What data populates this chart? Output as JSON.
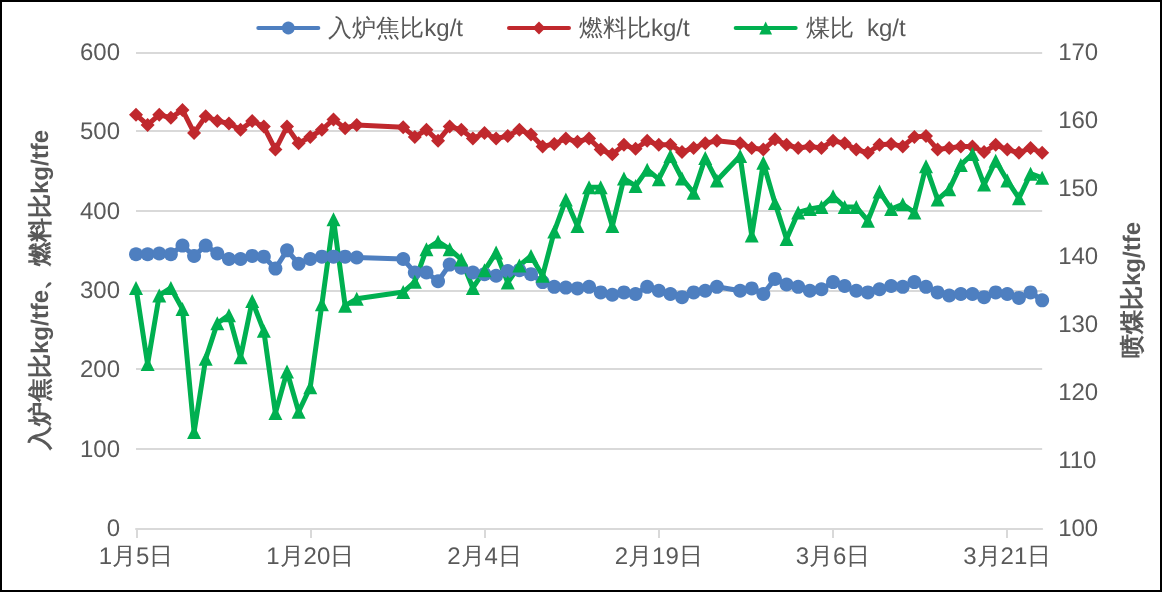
{
  "chart_data": {
    "type": "line",
    "xlabel": null,
    "ylabel": "入炉焦比kg/tfe、燃料比kg/tfe",
    "y2label": "喷煤比kg/tfe",
    "categories": [
      "1月5日",
      null,
      null,
      null,
      null,
      null,
      null,
      null,
      null,
      null,
      null,
      null,
      null,
      null,
      null,
      "1月20日",
      null,
      null,
      null,
      null,
      null,
      null,
      null,
      null,
      null,
      null,
      null,
      null,
      null,
      null,
      "2月4日",
      null,
      null,
      null,
      null,
      null,
      null,
      null,
      null,
      null,
      null,
      null,
      null,
      null,
      null,
      "2月19日",
      null,
      null,
      null,
      null,
      null,
      null,
      null,
      null,
      null,
      null,
      null,
      null,
      null,
      null,
      "3月6日",
      null,
      null,
      null,
      null,
      null,
      null,
      null,
      null,
      null,
      null,
      null,
      null,
      null,
      null,
      "3月21日",
      null,
      null,
      null
    ],
    "series": [
      {
        "name": "入炉焦比kg/t",
        "color": "#4e7fc0",
        "marker": "circle",
        "values": [
          345,
          345,
          346,
          345,
          356,
          343,
          356,
          346,
          339,
          339,
          343,
          342,
          327,
          350,
          333,
          339,
          342,
          342,
          342,
          341,
          null,
          null,
          null,
          339,
          322,
          322,
          311,
          332,
          328,
          322,
          320,
          318,
          324,
          325,
          320,
          310,
          304,
          303,
          302,
          304,
          297,
          294,
          297,
          295,
          304,
          299,
          295,
          291,
          297,
          299,
          304,
          null,
          299,
          302,
          295,
          314,
          307,
          304,
          299,
          301,
          310,
          305,
          299,
          297,
          301,
          305,
          304,
          310,
          304,
          297,
          293,
          295,
          295,
          291,
          297,
          295,
          290,
          297,
          287
        ]
      },
      {
        "name": "燃料比kg/t",
        "color": "#c0282d",
        "marker": "diamond",
        "values": [
          521,
          508,
          521,
          517,
          527,
          498,
          519,
          513,
          510,
          502,
          513,
          506,
          477,
          506,
          485,
          493,
          502,
          515,
          504,
          508,
          null,
          null,
          null,
          505,
          493,
          502,
          488,
          506,
          502,
          491,
          498,
          491,
          494,
          502,
          496,
          481,
          484,
          491,
          487,
          491,
          477,
          471,
          483,
          478,
          488,
          483,
          483,
          474,
          479,
          485,
          488,
          null,
          485,
          479,
          477,
          490,
          483,
          479,
          481,
          479,
          488,
          485,
          477,
          473,
          483,
          484,
          481,
          493,
          494,
          477,
          479,
          481,
          481,
          474,
          483,
          477,
          473,
          479,
          473
        ]
      },
      {
        "name": "煤比  kg/t",
        "color": "#00b050",
        "marker": "triangle",
        "axis": "y2",
        "values": [
          135.3,
          124.1,
          134.2,
          135.3,
          132.2,
          114.1,
          124.9,
          130.1,
          131.3,
          125.1,
          133.4,
          129.0,
          116.9,
          123.0,
          117.1,
          120.7,
          132.9,
          145.4,
          132.7,
          133.7,
          null,
          null,
          null,
          134.7,
          136.2,
          141.0,
          142.1,
          141.0,
          139.5,
          135.3,
          137.9,
          140.5,
          136.1,
          138.6,
          140.0,
          137.1,
          143.6,
          148.3,
          144.4,
          150.1,
          150.1,
          144.4,
          151.4,
          150.3,
          152.7,
          151.3,
          154.7,
          151.4,
          149.3,
          154.4,
          151.1,
          null,
          154.7,
          143.0,
          153.7,
          147.8,
          142.5,
          146.4,
          146.9,
          147.2,
          148.8,
          147.2,
          147.2,
          145.2,
          149.5,
          146.9,
          147.6,
          146.4,
          153.2,
          148.3,
          149.8,
          153.4,
          155.0,
          150.5,
          154.0,
          151.1,
          148.5,
          152.1,
          151.5
        ]
      }
    ],
    "ylim": [
      0,
      600
    ],
    "yticks": [
      0,
      100,
      200,
      300,
      400,
      500,
      600
    ],
    "y2lim": [
      100,
      170
    ],
    "y2ticks": [
      100,
      110,
      120,
      130,
      140,
      150,
      160,
      170
    ],
    "grid": "y",
    "legend": "top",
    "line_style": "solid"
  }
}
